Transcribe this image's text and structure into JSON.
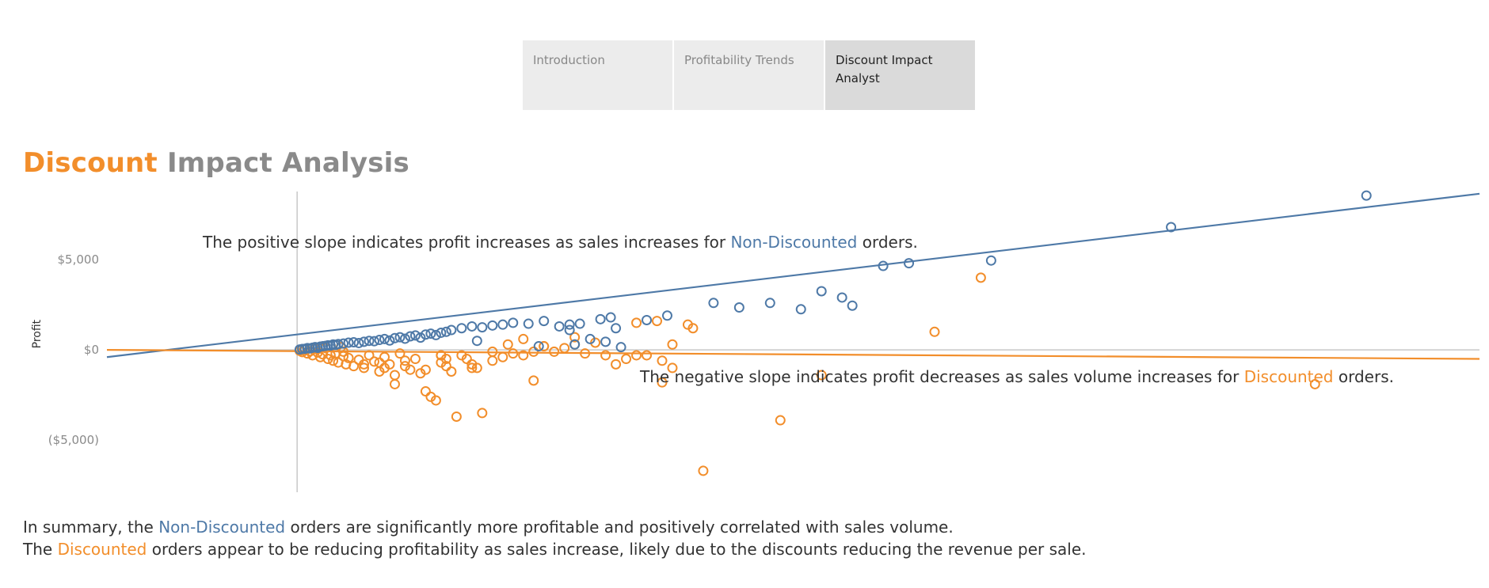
{
  "tabs": [
    {
      "label": "Introduction"
    },
    {
      "label": "Profitability Trends"
    },
    {
      "label": "Discount Impact Analyst"
    }
  ],
  "title": {
    "accent": "Discount",
    "rest": "Impact Analysis"
  },
  "annotations": {
    "positive": {
      "pre": "The positive slope indicates profit increases as sales increases for ",
      "highlight": "Non-Discounted",
      "post": " orders."
    },
    "negative": {
      "pre": "The negative slope indicates profit decreases as sales volume increases for ",
      "highlight": "Discounted",
      "post": " orders."
    }
  },
  "summary": {
    "line1": {
      "pre": "In summary, the ",
      "highlight": "Non-Discounted",
      "post": " orders are significantly more profitable and positively correlated with sales volume."
    },
    "line2": {
      "pre": "The ",
      "highlight": "Discounted",
      "post": " orders appear to be reducing profitability as sales increase, likely due to the discounts reducing the revenue per sale."
    }
  },
  "colors": {
    "non_discounted": "#4e79a7",
    "discounted": "#f28e2b",
    "axis": "#c8c8c8",
    "tick_text": "#8a8a8a"
  },
  "chart_data": {
    "type": "scatter",
    "ylabel": "Profit",
    "xlabel": "",
    "yticks": [
      {
        "value": 5000,
        "label": "$5,000"
      },
      {
        "value": 0,
        "label": "$0"
      },
      {
        "value": -5000,
        "label": "($5,000)"
      }
    ],
    "xlim": [
      -3700,
      23000
    ],
    "ylim": [
      -7800,
      9300
    ],
    "grid": false,
    "series": [
      {
        "name": "Non-Discounted",
        "color": "#4e79a7",
        "x": [
          50,
          100,
          150,
          200,
          250,
          300,
          350,
          400,
          450,
          500,
          550,
          600,
          650,
          700,
          750,
          800,
          900,
          1000,
          1100,
          1200,
          1300,
          1400,
          1500,
          1600,
          1700,
          1800,
          1900,
          2000,
          2100,
          2200,
          2300,
          2400,
          2500,
          2600,
          2700,
          2800,
          2900,
          3000,
          3200,
          3400,
          3600,
          3800,
          4000,
          4200,
          4500,
          4800,
          5100,
          5300,
          5300,
          5500,
          5900,
          6100,
          6200,
          6800,
          7200,
          8600,
          9200,
          8100,
          9800,
          10200,
          10600,
          10800,
          11400,
          11900,
          13500,
          17000,
          20800,
          5400,
          5700,
          6300,
          6000,
          3500,
          4700
        ],
        "y": [
          20,
          50,
          60,
          100,
          80,
          120,
          150,
          110,
          180,
          200,
          220,
          250,
          240,
          300,
          280,
          320,
          350,
          400,
          420,
          380,
          450,
          500,
          480,
          550,
          600,
          520,
          650,
          700,
          620,
          750,
          800,
          680,
          850,
          900,
          820,
          950,
          1000,
          1100,
          1200,
          1300,
          1250,
          1350,
          1400,
          1500,
          1450,
          1600,
          1300,
          1100,
          1400,
          1450,
          1700,
          1800,
          1200,
          1650,
          1900,
          2350,
          2600,
          2600,
          2250,
          3250,
          2900,
          2450,
          4650,
          4800,
          4950,
          6800,
          8550,
          300,
          600,
          150,
          450,
          500,
          200
        ]
      },
      {
        "name": "Discounted",
        "color": "#f28e2b",
        "x": [
          50,
          100,
          150,
          200,
          250,
          300,
          350,
          400,
          450,
          500,
          550,
          600,
          650,
          700,
          750,
          800,
          850,
          900,
          950,
          1000,
          1100,
          1200,
          1300,
          1400,
          1500,
          1600,
          1700,
          1800,
          1900,
          2000,
          2100,
          2200,
          2300,
          2400,
          2500,
          2600,
          2700,
          2800,
          2900,
          3000,
          3100,
          3200,
          3300,
          3400,
          3500,
          3600,
          3800,
          4000,
          4200,
          4400,
          4600,
          4800,
          5000,
          5200,
          5400,
          5600,
          5800,
          6000,
          6200,
          6400,
          6600,
          7100,
          7100,
          7300,
          7600,
          7700,
          7900,
          4600,
          4800,
          2900,
          2800,
          3400,
          3800,
          1600,
          900,
          1300,
          1900,
          1700,
          2100,
          2500,
          2800,
          10200,
          9400,
          12400,
          13300,
          19800,
          4100,
          4400,
          5400,
          6800,
          6600,
          7000,
          7300
        ],
        "y": [
          -50,
          -120,
          20,
          -200,
          -80,
          -300,
          50,
          -150,
          -400,
          -250,
          100,
          -500,
          -300,
          -600,
          -200,
          -700,
          150,
          -350,
          -800,
          -450,
          -900,
          -550,
          -1000,
          -300,
          -650,
          -1200,
          -400,
          -800,
          -1400,
          -200,
          -900,
          -1100,
          -500,
          -1300,
          -2300,
          -2600,
          -2800,
          -700,
          -900,
          -1200,
          -3700,
          -300,
          -500,
          -800,
          -1000,
          -3500,
          -600,
          -400,
          -200,
          -300,
          -1700,
          200,
          -100,
          100,
          300,
          -200,
          400,
          -300,
          -800,
          -500,
          -300,
          -1800,
          -600,
          -1000,
          1400,
          1200,
          -6700,
          -100,
          200,
          -500,
          -300,
          -1000,
          -100,
          -700,
          -100,
          -800,
          -1900,
          -1000,
          -600,
          -1100,
          -300,
          -1400,
          -3900,
          1000,
          4000,
          -1900,
          300,
          600,
          700,
          -300,
          1500,
          1600,
          300
        ]
      }
    ],
    "trend_lines": [
      {
        "series": "Non-Discounted",
        "x": [
          -3700,
          23000
        ],
        "y": [
          -400,
          8650
        ]
      },
      {
        "series": "Discounted",
        "x": [
          -3700,
          23000
        ],
        "y": [
          0,
          -500
        ]
      }
    ]
  }
}
